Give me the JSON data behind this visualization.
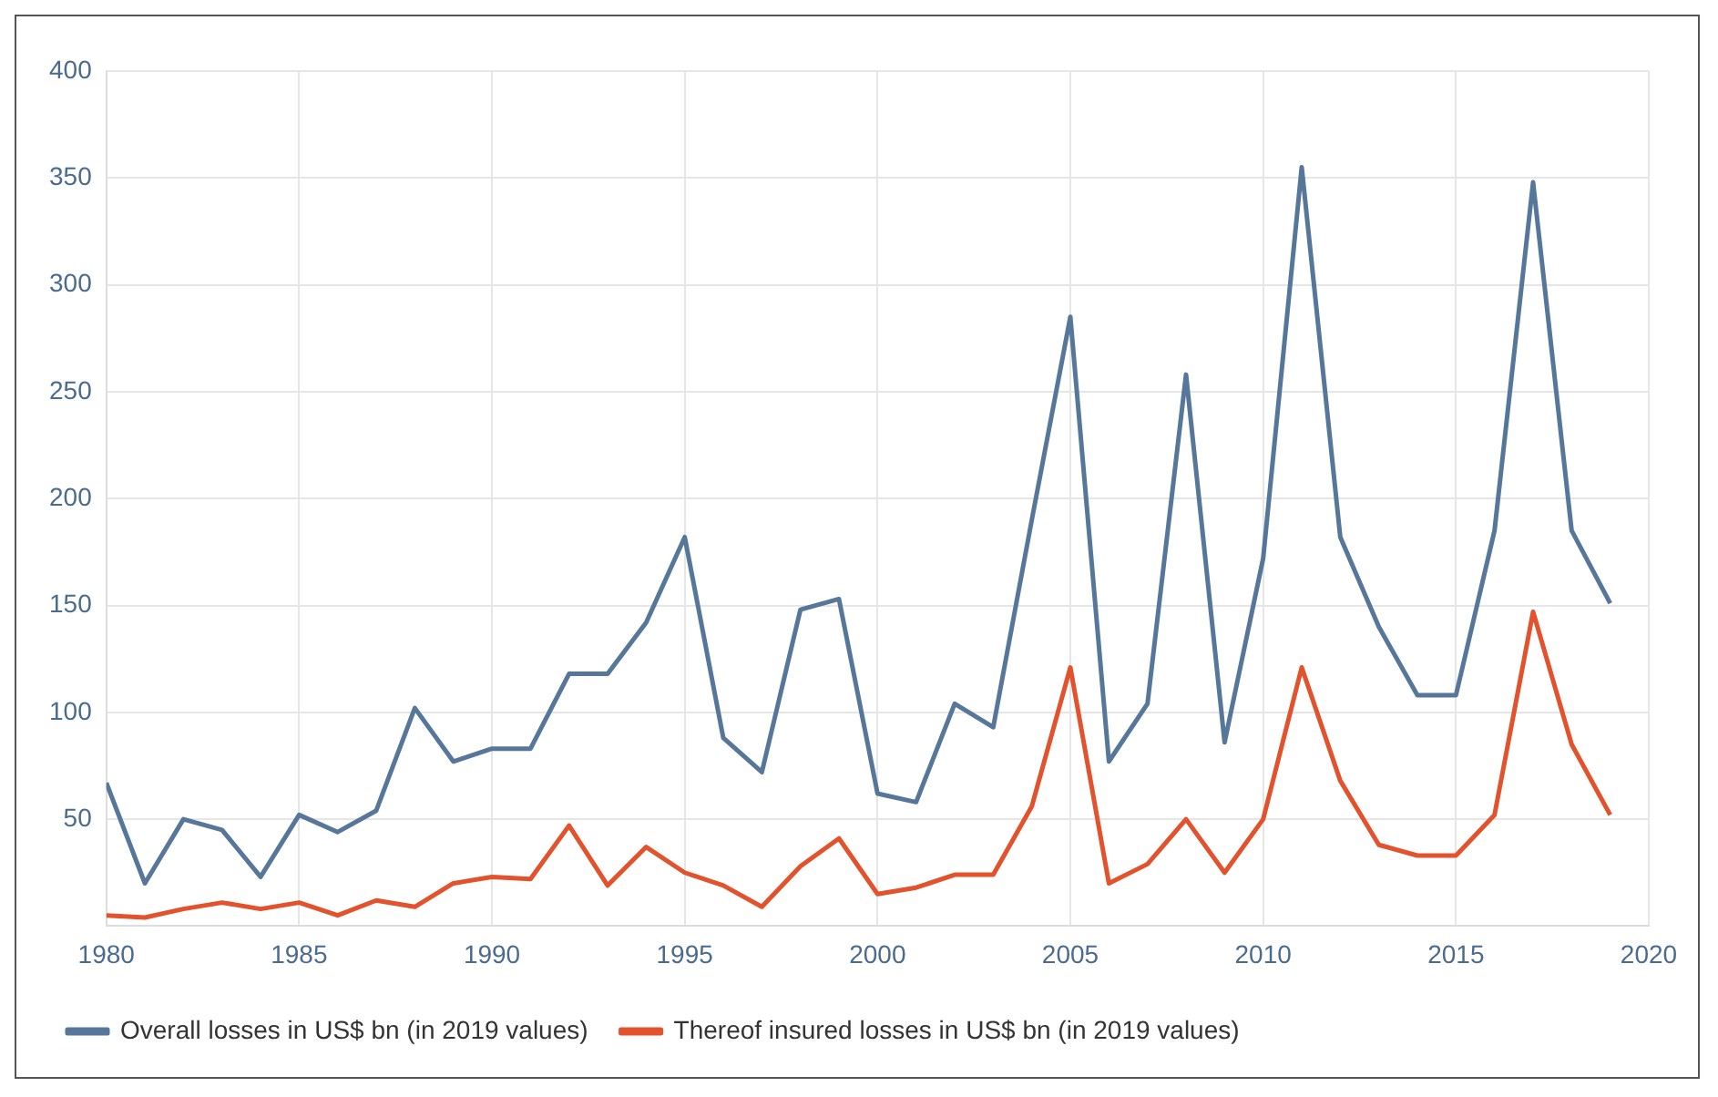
{
  "chart_data": {
    "type": "line",
    "x": [
      1980,
      1981,
      1982,
      1983,
      1984,
      1985,
      1986,
      1987,
      1988,
      1989,
      1990,
      1991,
      1992,
      1993,
      1994,
      1995,
      1996,
      1997,
      1998,
      1999,
      2000,
      2001,
      2002,
      2003,
      2004,
      2005,
      2006,
      2007,
      2008,
      2009,
      2010,
      2011,
      2012,
      2013,
      2014,
      2015,
      2016,
      2017,
      2018,
      2019
    ],
    "series": [
      {
        "name": "Overall losses in US$ bn (in 2019 values)",
        "color": "#56769a",
        "values": [
          67,
          20,
          50,
          45,
          23,
          52,
          44,
          54,
          102,
          77,
          83,
          83,
          118,
          118,
          142,
          182,
          88,
          72,
          148,
          153,
          62,
          58,
          104,
          93,
          190,
          285,
          77,
          104,
          258,
          86,
          172,
          355,
          182,
          140,
          108,
          108,
          185,
          348,
          185,
          151
        ]
      },
      {
        "name": "Thereof insured losses in US$ bn (in 2019 values)",
        "color": "#e2522c",
        "values": [
          5,
          4,
          8,
          11,
          8,
          11,
          5,
          12,
          9,
          20,
          23,
          22,
          47,
          19,
          37,
          25,
          19,
          9,
          28,
          41,
          15,
          18,
          24,
          24,
          56,
          121,
          20,
          29,
          50,
          25,
          50,
          121,
          68,
          38,
          33,
          33,
          52,
          147,
          85,
          52
        ]
      }
    ],
    "xlim": [
      1980,
      2020
    ],
    "xticks": [
      1980,
      1985,
      1990,
      1995,
      2000,
      2005,
      2010,
      2015,
      2020
    ],
    "ylim": [
      0,
      400
    ],
    "yticks": [
      50,
      100,
      150,
      200,
      250,
      300,
      350,
      400
    ],
    "grid": true,
    "legend": "bottom left",
    "marker": "none",
    "line_style": "solid"
  }
}
